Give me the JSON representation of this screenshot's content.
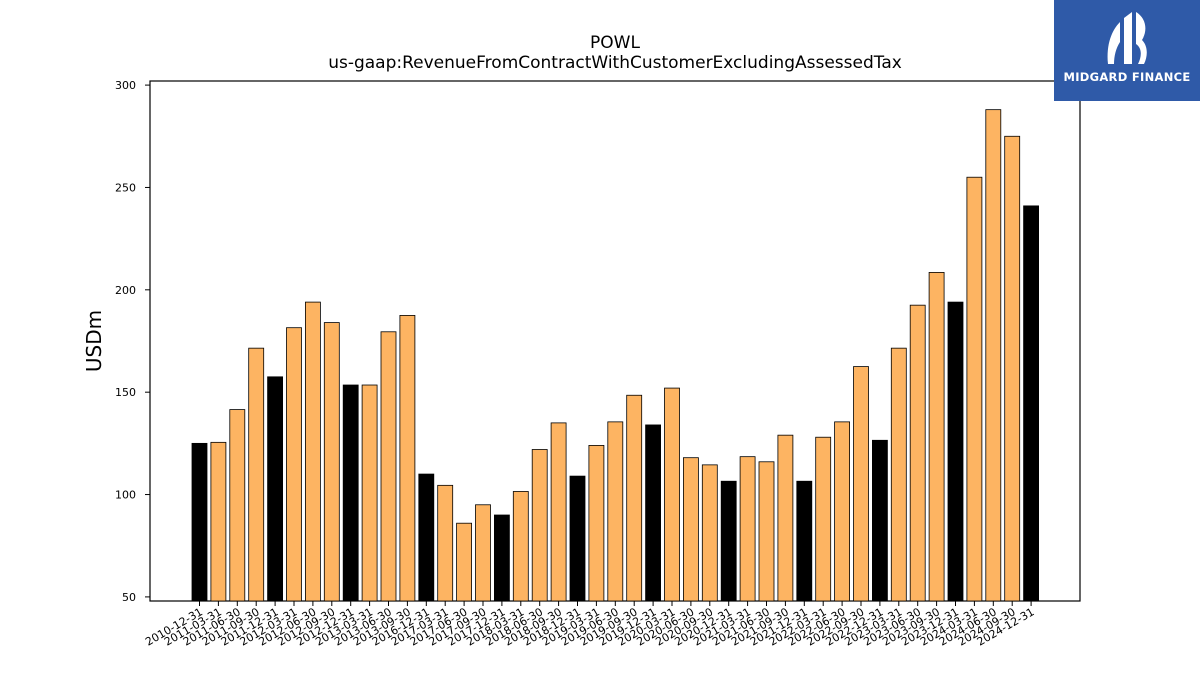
{
  "chart_data": {
    "type": "bar",
    "title": "POWL",
    "subtitle": "us-gaap:RevenueFromContractWithCustomerExcludingAssessedTax",
    "ylabel": "USDm",
    "ylim": [
      48,
      302
    ],
    "yticks": [
      50,
      100,
      150,
      200,
      250,
      300
    ],
    "grid": false,
    "colors": {
      "quarter": "#fdb462",
      "annual": "#000000",
      "edge": "#000000"
    },
    "categories": [
      "2010-12-31",
      "2011-03-31",
      "2011-06-30",
      "2011-09-30",
      "2011-12-31",
      "2012-03-31",
      "2012-06-30",
      "2012-09-30",
      "2012-12-31",
      "2013-03-31",
      "2013-06-30",
      "2013-09-30",
      "2016-12-31",
      "2017-03-31",
      "2017-06-30",
      "2017-09-30",
      "2017-12-31",
      "2018-03-31",
      "2018-06-30",
      "2018-09-30",
      "2018-12-31",
      "2019-03-31",
      "2019-06-30",
      "2019-09-30",
      "2019-12-31",
      "2020-03-31",
      "2020-06-30",
      "2020-09-30",
      "2020-12-31",
      "2021-03-31",
      "2021-06-30",
      "2021-09-30",
      "2021-12-31",
      "2022-03-31",
      "2022-06-30",
      "2022-09-30",
      "2022-12-31",
      "2023-03-31",
      "2023-06-30",
      "2023-09-30",
      "2023-12-31",
      "2024-03-31",
      "2024-06-30",
      "2024-09-30",
      "2024-12-31"
    ],
    "values": [
      125,
      125.5,
      141.5,
      171.5,
      157.5,
      181.5,
      194,
      184,
      153.5,
      153.5,
      179.5,
      187.5,
      110,
      104.5,
      86,
      95,
      90,
      101.5,
      122,
      135,
      109,
      124,
      135.5,
      148.5,
      134,
      152,
      118,
      114.5,
      106.5,
      118.5,
      116,
      129,
      106.5,
      128,
      135.5,
      162.5,
      126.5,
      171.5,
      192.5,
      208.5,
      194,
      255,
      288,
      275,
      241
    ],
    "annual_flags": [
      1,
      0,
      0,
      0,
      1,
      0,
      0,
      0,
      1,
      0,
      0,
      0,
      1,
      0,
      0,
      0,
      1,
      0,
      0,
      0,
      1,
      0,
      0,
      0,
      1,
      0,
      0,
      0,
      1,
      0,
      0,
      0,
      1,
      0,
      0,
      0,
      1,
      0,
      0,
      0,
      1,
      0,
      0,
      0,
      1
    ]
  },
  "logo": {
    "text": "MIDGARD FINANCE"
  }
}
